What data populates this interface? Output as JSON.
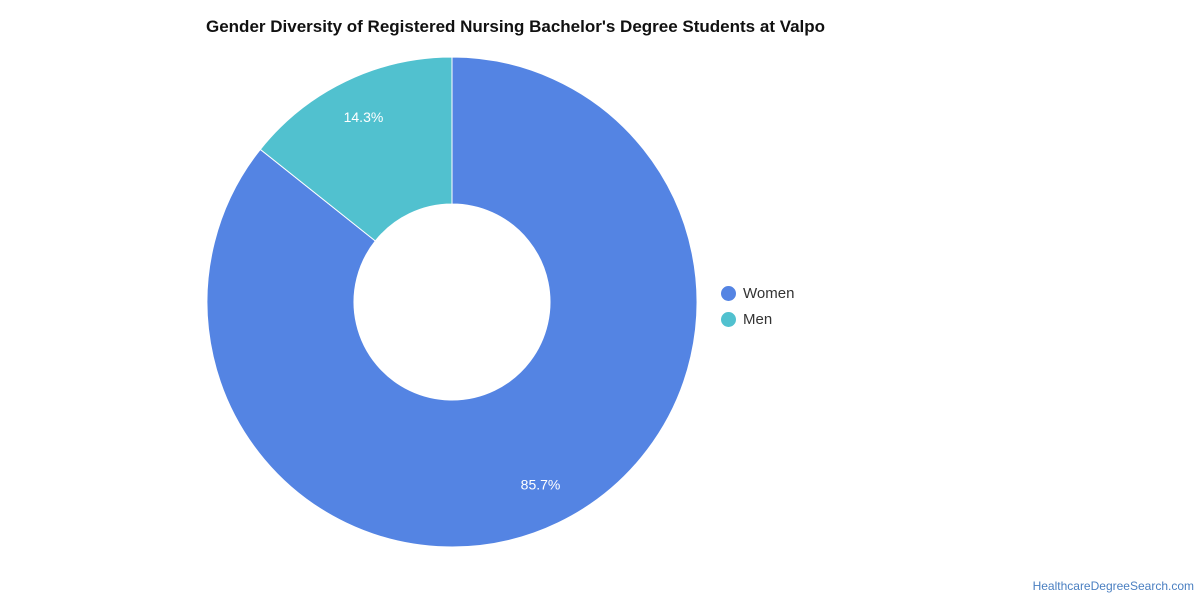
{
  "chart_data": {
    "type": "pie",
    "title": "Gender Diversity of Registered Nursing Bachelor's Degree Students at Valpo",
    "donut": true,
    "legend_position": "right",
    "slices": [
      {
        "name": "Women",
        "value": 85.7,
        "label": "85.7%",
        "color": "#5484e3"
      },
      {
        "name": "Men",
        "value": 14.3,
        "label": "14.3%",
        "color": "#51c1cf"
      }
    ]
  },
  "credit": "HealthcareDegreeSearch.com"
}
